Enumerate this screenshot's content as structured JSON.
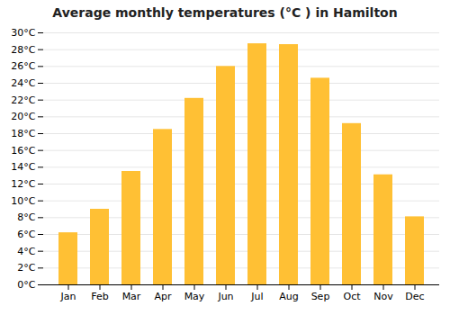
{
  "chart_data": {
    "type": "bar",
    "title": "Average monthly temperatures (°C ) in Hamilton",
    "categories": [
      "Jan",
      "Feb",
      "Mar",
      "Apr",
      "May",
      "Jun",
      "Jul",
      "Aug",
      "Sep",
      "Oct",
      "Nov",
      "Dec"
    ],
    "values": [
      6.2,
      9.0,
      13.5,
      18.5,
      22.2,
      26.0,
      28.7,
      28.6,
      24.6,
      19.2,
      13.1,
      8.1
    ],
    "color": "#FFC034",
    "ylim": [
      0,
      30
    ],
    "yticks": [
      {
        "value": 0,
        "label": "0°C"
      },
      {
        "value": 2,
        "label": "2°C"
      },
      {
        "value": 4,
        "label": "4°C"
      },
      {
        "value": 6,
        "label": "6°C"
      },
      {
        "value": 8,
        "label": "8°C"
      },
      {
        "value": 10,
        "label": "10°C"
      },
      {
        "value": 12,
        "label": "12°C"
      },
      {
        "value": 14,
        "label": "14°C"
      },
      {
        "value": 16,
        "label": "16°C"
      },
      {
        "value": 18,
        "label": "18°C"
      },
      {
        "value": 20,
        "label": "20°C"
      },
      {
        "value": 22,
        "label": "22°C"
      },
      {
        "value": 24,
        "label": "24°C"
      },
      {
        "value": 26,
        "label": "26°C"
      },
      {
        "value": 28,
        "label": "28°C"
      },
      {
        "value": 30,
        "label": "30°C"
      }
    ],
    "grid": true
  }
}
